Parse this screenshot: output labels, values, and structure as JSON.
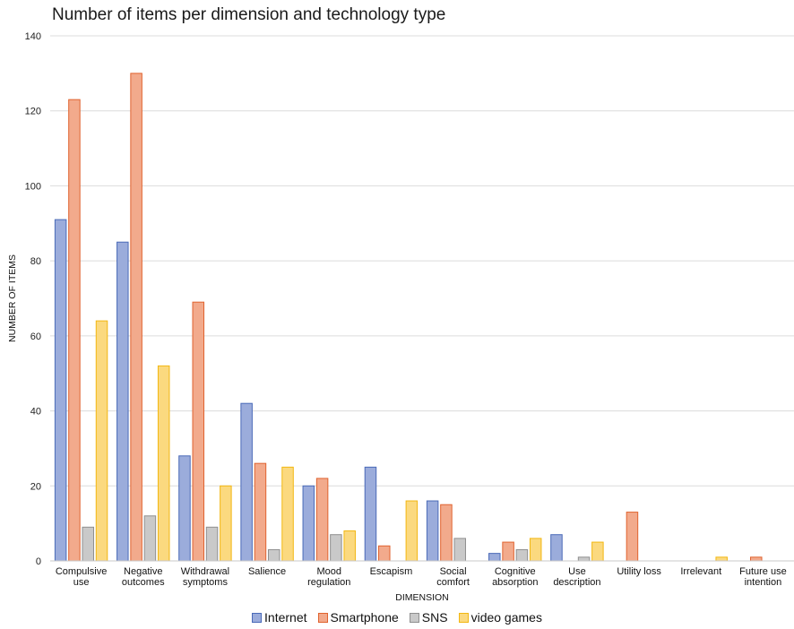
{
  "chart_data": {
    "type": "bar",
    "title": "Number of items per dimension and technology type",
    "xlabel": "DIMENSION",
    "ylabel": "NUMBER OF ITEMS",
    "ylim": [
      0,
      140
    ],
    "yticks": [
      0,
      20,
      40,
      60,
      80,
      100,
      120,
      140
    ],
    "grid": true,
    "legend_position": "bottom",
    "categories": [
      [
        "Compulsive",
        "use"
      ],
      [
        "Negative",
        "outcomes"
      ],
      [
        "Withdrawal",
        "symptoms"
      ],
      [
        "Salience"
      ],
      [
        "Mood",
        "regulation"
      ],
      [
        "Escapism"
      ],
      [
        "Social",
        "comfort"
      ],
      [
        "Cognitive",
        "absorption"
      ],
      [
        "Use",
        "description"
      ],
      [
        "Utility loss"
      ],
      [
        "Irrelevant"
      ],
      [
        "Future use",
        "intention"
      ]
    ],
    "series": [
      {
        "name": "Internet",
        "color": "#9bacdb",
        "stroke": "#4a6ab8",
        "values": [
          91,
          85,
          28,
          42,
          20,
          25,
          16,
          2,
          7,
          0,
          0,
          0
        ]
      },
      {
        "name": "Smartphone",
        "color": "#f2aa8c",
        "stroke": "#e0632f",
        "values": [
          123,
          130,
          69,
          26,
          22,
          4,
          15,
          5,
          0,
          13,
          0,
          1
        ]
      },
      {
        "name": "SNS",
        "color": "#c9c9c9",
        "stroke": "#8f8f8f",
        "values": [
          9,
          12,
          9,
          3,
          7,
          0,
          6,
          3,
          1,
          0,
          0,
          0
        ]
      },
      {
        "name": "video games",
        "color": "#fbd97f",
        "stroke": "#f2b712",
        "values": [
          64,
          52,
          20,
          25,
          8,
          16,
          0,
          6,
          5,
          0,
          1,
          0
        ]
      }
    ]
  }
}
